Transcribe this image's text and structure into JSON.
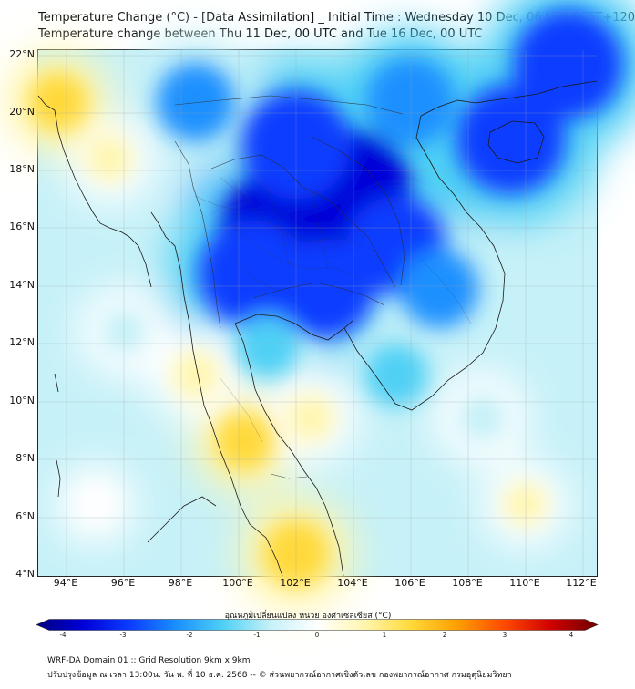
{
  "header": {
    "title": "Temperature Change (°C) - [Data Assimilation] _ Initial Time : Wednesday 10 Dec, 06 UTC FCST+120",
    "subtitle": "Temperature change between Thu 11 Dec, 00 UTC and Tue 16 Dec, 00 UTC"
  },
  "map": {
    "lat_labels": [
      "22°N",
      "20°N",
      "18°N",
      "16°N",
      "14°N",
      "12°N",
      "10°N",
      "8°N",
      "6°N",
      "4°N"
    ],
    "lon_labels": [
      "94°E",
      "96°E",
      "98°E",
      "100°E",
      "102°E",
      "104°E",
      "106°E",
      "108°E",
      "110°E",
      "112°E"
    ],
    "lat_range": [
      4,
      22.3
    ],
    "lon_range": [
      93,
      112.5
    ]
  },
  "colorbar": {
    "label": "อุณหภูมิเปลี่ยนแปลง หน่วย องศาเซลเซียส (°C)",
    "ticks": [
      "-4",
      "-3",
      "-2",
      "-1",
      "0",
      "1",
      "2",
      "3",
      "4"
    ],
    "range": [
      -4,
      4
    ],
    "colors": [
      "#00007f",
      "#0000d8",
      "#0b3dff",
      "#1a90ff",
      "#4fd0f5",
      "#c6f1f8",
      "#ffffff",
      "#fff6b0",
      "#ffd93a",
      "#ff9f00",
      "#ff4a00",
      "#d00000",
      "#6e0000"
    ]
  },
  "footer": {
    "line1": "WRF-DA Domain 01 :: Grid Resolution 9km x 9km",
    "line2": "ปรับปรุงข้อมูล ณ เวลา 13:00น. วัน พ. ที่ 10 ธ.ค. 2568 -- © ส่วนพยากรณ์อากาศเชิงตัวเลข กองพยากรณ์อากาศ กรมอุตุนิยมวิทยา"
  },
  "field": [
    {
      "lon": 101.5,
      "lat": 16.0,
      "value": -3.6
    },
    {
      "lon": 104.0,
      "lat": 17.5,
      "value": -3.2
    },
    {
      "lon": 102.0,
      "lat": 19.0,
      "value": -3.0
    },
    {
      "lon": 100.5,
      "lat": 14.5,
      "value": -3.0
    },
    {
      "lon": 103.0,
      "lat": 14.0,
      "value": -2.6
    },
    {
      "lon": 105.5,
      "lat": 15.5,
      "value": -2.6
    },
    {
      "lon": 109.5,
      "lat": 19.2,
      "value": -3.0
    },
    {
      "lon": 111.5,
      "lat": 21.8,
      "value": -3.0
    },
    {
      "lon": 98.5,
      "lat": 20.5,
      "value": -1.8
    },
    {
      "lon": 106.0,
      "lat": 20.5,
      "value": -2.2
    },
    {
      "lon": 107.0,
      "lat": 14.0,
      "value": -1.8
    },
    {
      "lon": 101.0,
      "lat": 12.0,
      "value": -1.2
    },
    {
      "lon": 105.5,
      "lat": 11.0,
      "value": -1.2
    },
    {
      "lon": 95.5,
      "lat": 18.5,
      "value": 0.5
    },
    {
      "lon": 93.7,
      "lat": 20.5,
      "value": 1.0
    },
    {
      "lon": 96.0,
      "lat": 12.5,
      "value": -0.5
    },
    {
      "lon": 100.2,
      "lat": 8.7,
      "value": 1.0
    },
    {
      "lon": 102.0,
      "lat": 4.8,
      "value": 1.3
    },
    {
      "lon": 98.5,
      "lat": 11.0,
      "value": 0.6
    },
    {
      "lon": 102.5,
      "lat": 9.5,
      "value": 0.6
    },
    {
      "lon": 110.0,
      "lat": 6.5,
      "value": 0.4
    },
    {
      "lon": 95.0,
      "lat": 6.5,
      "value": 0.2
    },
    {
      "lon": 108.5,
      "lat": 9.5,
      "value": -0.6
    }
  ]
}
